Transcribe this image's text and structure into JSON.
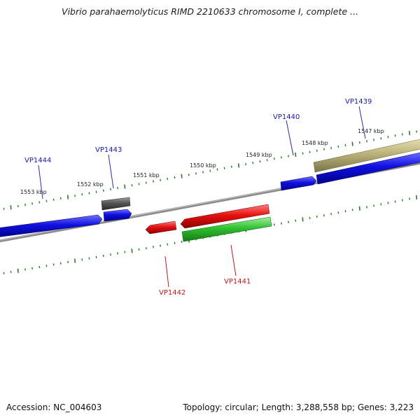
{
  "title": "Vibrio parahaemolyticus RIMD 2210633 chromosome I, complete ...",
  "footer": {
    "accession": "Accession: NC_004603",
    "topology": "Topology: circular; Length: 3,288,558 bp; Genes: 3,223"
  },
  "colors": {
    "forward_gene": "#1010e0",
    "reverse_gene": "#e01010",
    "forward_label": "#1a1aa8",
    "reverse_label": "#c01818",
    "grey_feature": "#555555",
    "olive_feature": "#b8b074",
    "green_feature": "#2fbf2f",
    "backbone": "#7a7a7a",
    "tick": "#2a7a2a"
  },
  "scale_labels": [
    "1547 kbp",
    "1548 kbp",
    "1549 kbp",
    "1550 kbp",
    "1551 kbp",
    "1552 kbp",
    "1553 kbp"
  ],
  "genes": [
    {
      "locus": "VP1439",
      "strand": "forward"
    },
    {
      "locus": "VP1440",
      "strand": "forward"
    },
    {
      "locus": "VP1441",
      "strand": "reverse"
    },
    {
      "locus": "VP1442",
      "strand": "reverse"
    },
    {
      "locus": "VP1443",
      "strand": "forward"
    },
    {
      "locus": "VP1444",
      "strand": "forward"
    }
  ]
}
